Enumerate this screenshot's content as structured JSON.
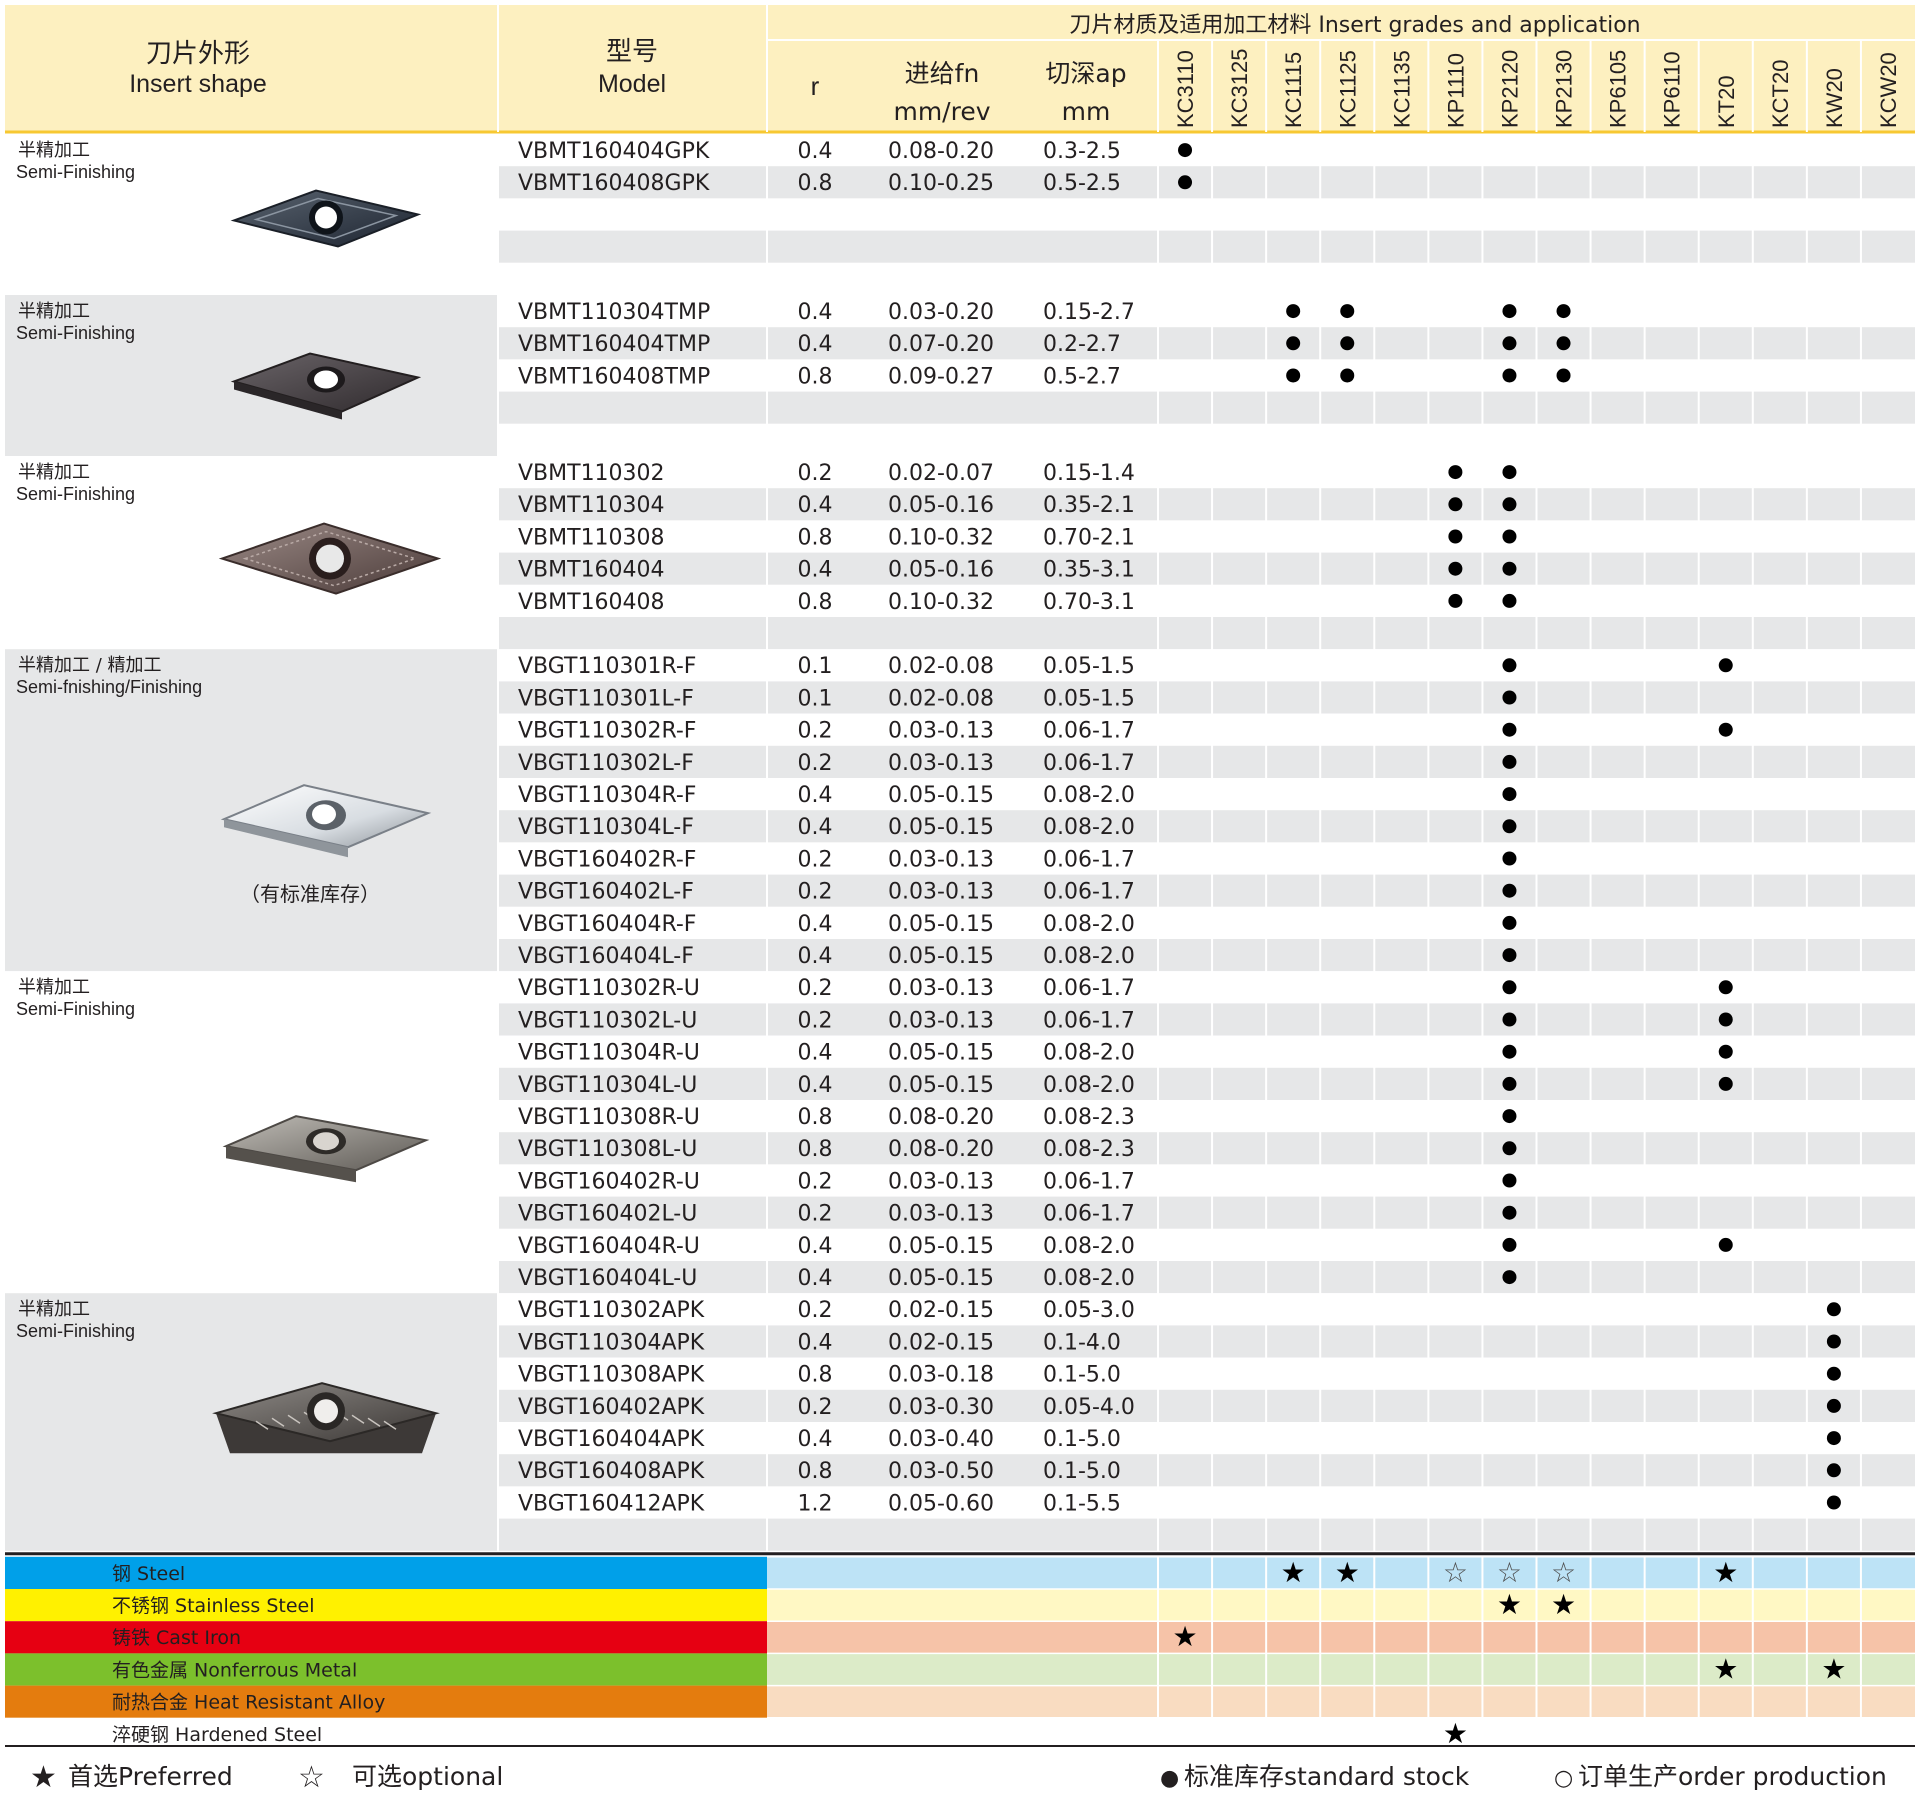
{
  "header": {
    "shape_cn": "刀片外形",
    "shape_en": "Insert shape",
    "model_cn": "型号",
    "model_en": "Model",
    "r_label": "r",
    "fn_cn": "进给fn",
    "fn_unit": "mm/rev",
    "ap_cn": "切深ap",
    "ap_unit": "mm",
    "grades_title": "刀片材质及适用加工材料 Insert grades and application"
  },
  "grades": [
    "KC3110",
    "KC3125",
    "KC1115",
    "KC1125",
    "KC1135",
    "KP1110",
    "KP2120",
    "KP2130",
    "KP6105",
    "KP6110",
    "KT20",
    "KCT20",
    "KW20",
    "KCW20"
  ],
  "groups": [
    {
      "label_cn": "半精加工",
      "label_en": "Semi-Finishing",
      "note": "",
      "image": "insert-vbmt-gpk",
      "rows": [
        {
          "model": "VBMT160404GPK",
          "r": "0.4",
          "fn": "0.08-0.20",
          "ap": "0.3-2.5",
          "stock": [
            "KC3110"
          ]
        },
        {
          "model": "VBMT160408GPK",
          "r": "0.8",
          "fn": "0.10-0.25",
          "ap": "0.5-2.5",
          "stock": [
            "KC3110"
          ]
        }
      ]
    },
    {
      "label_cn": "半精加工",
      "label_en": "Semi-Finishing",
      "note": "",
      "image": "insert-vbmt-tmp",
      "rows": [
        {
          "model": "VBMT110304TMP",
          "r": "0.4",
          "fn": "0.03-0.20",
          "ap": "0.15-2.7",
          "stock": [
            "KC1115",
            "KC1125",
            "KP2120",
            "KP2130"
          ]
        },
        {
          "model": "VBMT160404TMP",
          "r": "0.4",
          "fn": "0.07-0.20",
          "ap": "0.2-2.7",
          "stock": [
            "KC1115",
            "KC1125",
            "KP2120",
            "KP2130"
          ]
        },
        {
          "model": "VBMT160408TMP",
          "r": "0.8",
          "fn": "0.09-0.27",
          "ap": "0.5-2.7",
          "stock": [
            "KC1115",
            "KC1125",
            "KP2120",
            "KP2130"
          ]
        }
      ]
    },
    {
      "label_cn": "半精加工",
      "label_en": "Semi-Finishing",
      "note": "",
      "image": "insert-vbmt",
      "rows": [
        {
          "model": "VBMT110302",
          "r": "0.2",
          "fn": "0.02-0.07",
          "ap": "0.15-1.4",
          "stock": [
            "KP1110",
            "KP2120"
          ]
        },
        {
          "model": "VBMT110304",
          "r": "0.4",
          "fn": "0.05-0.16",
          "ap": "0.35-2.1",
          "stock": [
            "KP1110",
            "KP2120"
          ]
        },
        {
          "model": "VBMT110308",
          "r": "0.8",
          "fn": "0.10-0.32",
          "ap": "0.70-2.1",
          "stock": [
            "KP1110",
            "KP2120"
          ]
        },
        {
          "model": "VBMT160404",
          "r": "0.4",
          "fn": "0.05-0.16",
          "ap": "0.35-3.1",
          "stock": [
            "KP1110",
            "KP2120"
          ]
        },
        {
          "model": "VBMT160408",
          "r": "0.8",
          "fn": "0.10-0.32",
          "ap": "0.70-3.1",
          "stock": [
            "KP1110",
            "KP2120"
          ]
        }
      ]
    },
    {
      "label_cn": "半精加工 / 精加工",
      "label_en": "Semi-fnishing/Finishing",
      "note": "（有标准库存）",
      "image": "insert-vbgt-f",
      "rows": [
        {
          "model": "VBGT110301R-F",
          "r": "0.1",
          "fn": "0.02-0.08",
          "ap": "0.05-1.5",
          "stock": [
            "KP2120",
            "KT20"
          ]
        },
        {
          "model": "VBGT110301L-F",
          "r": "0.1",
          "fn": "0.02-0.08",
          "ap": "0.05-1.5",
          "stock": [
            "KP2120"
          ]
        },
        {
          "model": "VBGT110302R-F",
          "r": "0.2",
          "fn": "0.03-0.13",
          "ap": "0.06-1.7",
          "stock": [
            "KP2120",
            "KT20"
          ]
        },
        {
          "model": "VBGT110302L-F",
          "r": "0.2",
          "fn": "0.03-0.13",
          "ap": "0.06-1.7",
          "stock": [
            "KP2120"
          ]
        },
        {
          "model": "VBGT110304R-F",
          "r": "0.4",
          "fn": "0.05-0.15",
          "ap": "0.08-2.0",
          "stock": [
            "KP2120"
          ]
        },
        {
          "model": "VBGT110304L-F",
          "r": "0.4",
          "fn": "0.05-0.15",
          "ap": "0.08-2.0",
          "stock": [
            "KP2120"
          ]
        },
        {
          "model": "VBGT160402R-F",
          "r": "0.2",
          "fn": "0.03-0.13",
          "ap": "0.06-1.7",
          "stock": [
            "KP2120"
          ]
        },
        {
          "model": "VBGT160402L-F",
          "r": "0.2",
          "fn": "0.03-0.13",
          "ap": "0.06-1.7",
          "stock": [
            "KP2120"
          ]
        },
        {
          "model": "VBGT160404R-F",
          "r": "0.4",
          "fn": "0.05-0.15",
          "ap": "0.08-2.0",
          "stock": [
            "KP2120"
          ]
        },
        {
          "model": "VBGT160404L-F",
          "r": "0.4",
          "fn": "0.05-0.15",
          "ap": "0.08-2.0",
          "stock": [
            "KP2120"
          ]
        }
      ]
    },
    {
      "label_cn": "半精加工",
      "label_en": "Semi-Finishing",
      "note": "",
      "image": "insert-vbgt-u",
      "rows": [
        {
          "model": "VBGT110302R-U",
          "r": "0.2",
          "fn": "0.03-0.13",
          "ap": "0.06-1.7",
          "stock": [
            "KP2120",
            "KT20"
          ]
        },
        {
          "model": "VBGT110302L-U",
          "r": "0.2",
          "fn": "0.03-0.13",
          "ap": "0.06-1.7",
          "stock": [
            "KP2120",
            "KT20"
          ]
        },
        {
          "model": "VBGT110304R-U",
          "r": "0.4",
          "fn": "0.05-0.15",
          "ap": "0.08-2.0",
          "stock": [
            "KP2120",
            "KT20"
          ]
        },
        {
          "model": "VBGT110304L-U",
          "r": "0.4",
          "fn": "0.05-0.15",
          "ap": "0.08-2.0",
          "stock": [
            "KP2120",
            "KT20"
          ]
        },
        {
          "model": "VBGT110308R-U",
          "r": "0.8",
          "fn": "0.08-0.20",
          "ap": "0.08-2.3",
          "stock": [
            "KP2120"
          ]
        },
        {
          "model": "VBGT110308L-U",
          "r": "0.8",
          "fn": "0.08-0.20",
          "ap": "0.08-2.3",
          "stock": [
            "KP2120"
          ]
        },
        {
          "model": "VBGT160402R-U",
          "r": "0.2",
          "fn": "0.03-0.13",
          "ap": "0.06-1.7",
          "stock": [
            "KP2120"
          ]
        },
        {
          "model": "VBGT160402L-U",
          "r": "0.2",
          "fn": "0.03-0.13",
          "ap": "0.06-1.7",
          "stock": [
            "KP2120"
          ]
        },
        {
          "model": "VBGT160404R-U",
          "r": "0.4",
          "fn": "0.05-0.15",
          "ap": "0.08-2.0",
          "stock": [
            "KP2120",
            "KT20"
          ]
        },
        {
          "model": "VBGT160404L-U",
          "r": "0.4",
          "fn": "0.05-0.15",
          "ap": "0.08-2.0",
          "stock": [
            "KP2120"
          ]
        }
      ]
    },
    {
      "label_cn": "半精加工",
      "label_en": "Semi-Finishing",
      "note": "",
      "image": "insert-vbgt-apk",
      "rows": [
        {
          "model": "VBGT110302APK",
          "r": "0.2",
          "fn": "0.02-0.15",
          "ap": "0.05-3.0",
          "stock": [
            "KW20"
          ]
        },
        {
          "model": "VBGT110304APK",
          "r": "0.4",
          "fn": "0.02-0.15",
          "ap": "0.1-4.0",
          "stock": [
            "KW20"
          ]
        },
        {
          "model": "VBGT110308APK",
          "r": "0.8",
          "fn": "0.03-0.18",
          "ap": "0.1-5.0",
          "stock": [
            "KW20"
          ]
        },
        {
          "model": "VBGT160402APK",
          "r": "0.2",
          "fn": "0.03-0.30",
          "ap": "0.05-4.0",
          "stock": [
            "KW20"
          ]
        },
        {
          "model": "VBGT160404APK",
          "r": "0.4",
          "fn": "0.03-0.40",
          "ap": "0.1-5.0",
          "stock": [
            "KW20"
          ]
        },
        {
          "model": "VBGT160408APK",
          "r": "0.8",
          "fn": "0.03-0.50",
          "ap": "0.1-5.0",
          "stock": [
            "KW20"
          ]
        },
        {
          "model": "VBGT160412APK",
          "r": "1.2",
          "fn": "0.05-0.60",
          "ap": "0.1-5.5",
          "stock": [
            "KW20"
          ]
        }
      ]
    }
  ],
  "materials": [
    {
      "label": "钢 Steel",
      "color": "#00a0e9",
      "tint": "#bde3f6",
      "marks": {
        "KC1115": "preferred",
        "KC1125": "preferred",
        "KP1110": "optional",
        "KP2120": "optional",
        "KP2130": "optional",
        "KT20": "preferred"
      }
    },
    {
      "label": "不锈钢 Stainless Steel",
      "color": "#fff100",
      "tint": "#fff8c4",
      "marks": {
        "KP2120": "preferred",
        "KP2130": "preferred"
      }
    },
    {
      "label": "铸铁 Cast Iron",
      "color": "#e60012",
      "tint": "#f6c3a8",
      "marks": {
        "KC3110": "preferred"
      }
    },
    {
      "label": "有色金属 Nonferrous Metal",
      "color": "#7cc02c",
      "tint": "#dcebc8",
      "marks": {
        "KT20": "preferred",
        "KW20": "preferred"
      }
    },
    {
      "label": "耐热合金 Heat Resistant Alloy",
      "color": "#e47c0e",
      "tint": "#f9dcc1",
      "marks": {}
    },
    {
      "label": "淬硬钢 Hardened Steel",
      "color": "#ffffff",
      "tint": "#ffffff",
      "marks": {
        "KP1110": "preferred"
      }
    }
  ],
  "legend": {
    "preferred_symbol": "★",
    "preferred_label": "首选Preferred",
    "optional_symbol": "☆",
    "optional_label": "可选optional",
    "stock_symbol": "●",
    "stock_label": "标准库存standard stock",
    "order_symbol": "○",
    "order_label": "订单生产order production"
  },
  "colors": {
    "header_bg": "#fdf0c0",
    "header_line": "#f7c832",
    "band_gray": "#e6e7e8",
    "band_white": "#ffffff",
    "divider": "#ffffff"
  }
}
